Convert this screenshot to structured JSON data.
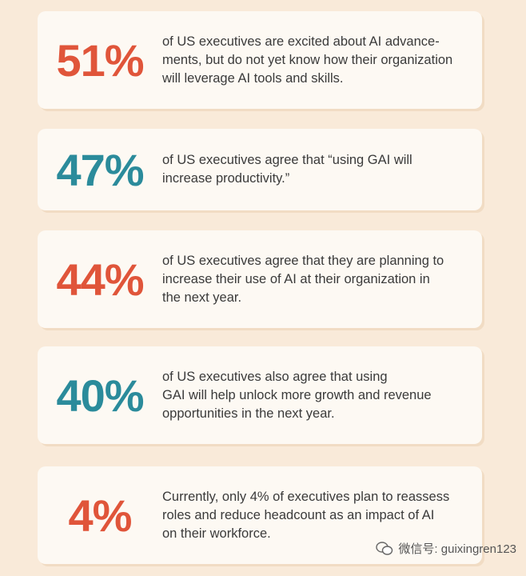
{
  "cards": [
    {
      "stat": "51%",
      "color": "#e0553a",
      "lines": [
        "of US executives are excited about AI advance-",
        "ments, but do not yet know how their organization",
        "will leverage AI tools and skills."
      ]
    },
    {
      "stat": "47%",
      "color": "#2b8b9b",
      "lines": [
        "of US executives agree that “using GAI will",
        "increase productivity.”"
      ]
    },
    {
      "stat": "44%",
      "color": "#e0553a",
      "lines": [
        "of US executives agree that they are planning to",
        "increase their use of AI at their organization in",
        "the next year."
      ]
    },
    {
      "stat": "40%",
      "color": "#2b8b9b",
      "lines": [
        "of US executives also agree that using",
        "GAI will help unlock more growth and revenue",
        "opportunities in the next year."
      ]
    },
    {
      "stat": "4%",
      "color": "#e0553a",
      "lines": [
        "Currently, only 4% of executives plan to reassess",
        "roles and reduce headcount as an impact of AI",
        "on their workforce."
      ]
    }
  ],
  "watermark": "微信号: guixingren123"
}
